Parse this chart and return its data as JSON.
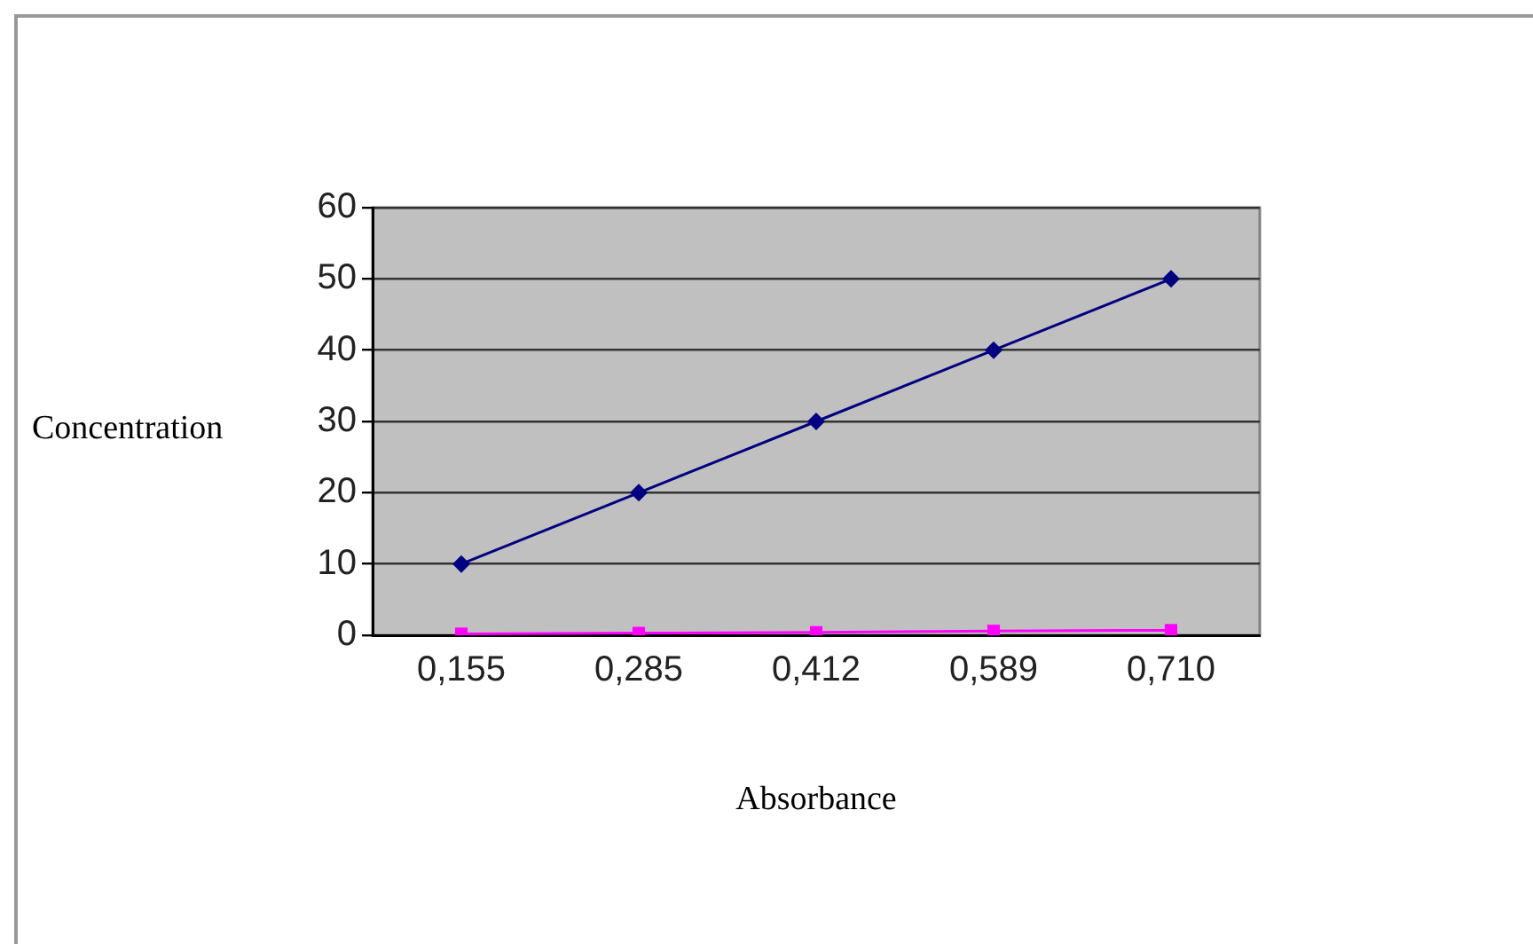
{
  "chart_data": {
    "type": "line",
    "xlabel": "Absorbance",
    "ylabel": "Concentration",
    "categories": [
      "0,155",
      "0,285",
      "0,412",
      "0,589",
      "0,710"
    ],
    "series": [
      {
        "color": "#000080",
        "values": [
          10,
          20,
          30,
          40,
          50
        ],
        "marker": "diamond"
      },
      {
        "color": "#ff00ff",
        "values": [
          0.2,
          0.3,
          0.4,
          0.6,
          0.7
        ],
        "marker": "square"
      }
    ],
    "ylim": [
      0,
      60
    ],
    "yticks": [
      0,
      10,
      20,
      30,
      40,
      50,
      60
    ],
    "grid": "y",
    "legend": false,
    "line_style": "solid"
  }
}
